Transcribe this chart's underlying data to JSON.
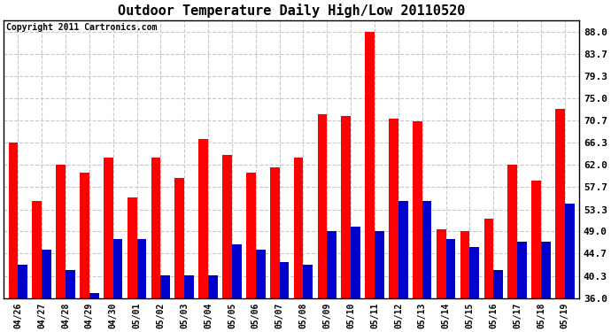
{
  "title": "Outdoor Temperature Daily High/Low 20110520",
  "copyright": "Copyright 2011 Cartronics.com",
  "dates": [
    "04/26",
    "04/27",
    "04/28",
    "04/29",
    "04/30",
    "05/01",
    "05/02",
    "05/03",
    "05/04",
    "05/05",
    "05/06",
    "05/07",
    "05/08",
    "05/09",
    "05/10",
    "05/11",
    "05/12",
    "05/13",
    "05/14",
    "05/15",
    "05/16",
    "05/17",
    "05/18",
    "05/19"
  ],
  "highs": [
    66.3,
    55.0,
    62.0,
    60.5,
    63.5,
    55.7,
    63.5,
    59.5,
    67.0,
    64.0,
    60.5,
    61.5,
    63.5,
    72.0,
    71.5,
    88.0,
    71.0,
    70.5,
    49.5,
    49.0,
    51.5,
    62.0,
    59.0,
    73.0
  ],
  "lows": [
    42.5,
    45.5,
    41.5,
    37.0,
    47.5,
    47.5,
    40.5,
    40.5,
    40.5,
    46.5,
    45.5,
    43.0,
    42.5,
    49.0,
    50.0,
    49.0,
    55.0,
    55.0,
    47.5,
    46.0,
    41.5,
    47.0,
    47.0,
    54.5
  ],
  "high_color": "#ff0000",
  "low_color": "#0000cc",
  "bg_color": "#ffffff",
  "grid_color": "#c8c8c8",
  "ylim_min": 36.0,
  "ylim_max": 90.3,
  "yticks": [
    36.0,
    40.3,
    44.7,
    49.0,
    53.3,
    57.7,
    62.0,
    66.3,
    70.7,
    75.0,
    79.3,
    83.7,
    88.0
  ],
  "bar_width": 0.4,
  "title_fontsize": 11,
  "copyright_fontsize": 7,
  "tick_fontsize": 7,
  "ytick_fontsize": 8,
  "dpi": 100
}
